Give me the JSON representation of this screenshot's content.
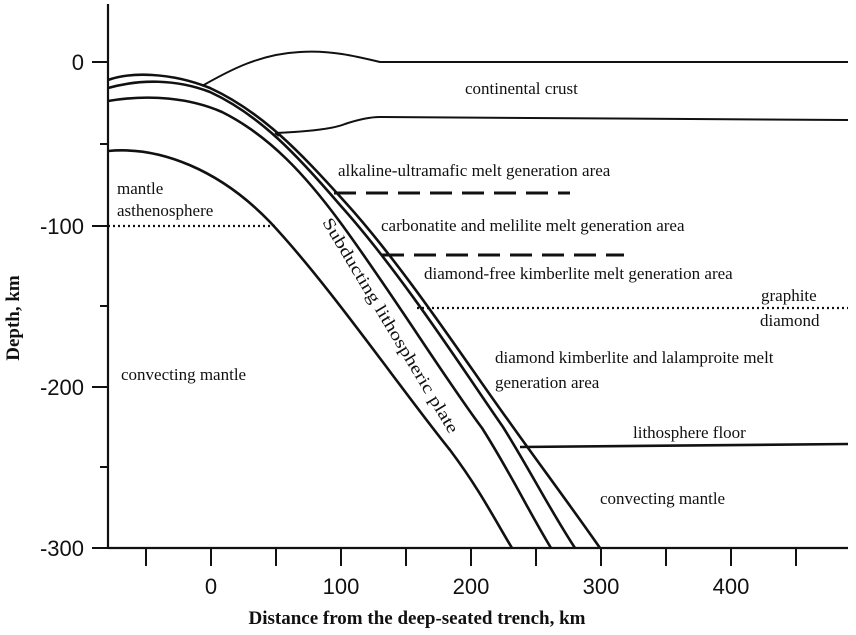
{
  "axes": {
    "x_title": "Distance from the deep-seated trench, km",
    "y_title": "Depth, km",
    "x_ticks": [
      "0",
      "100",
      "200",
      "300",
      "400"
    ],
    "y_ticks": [
      "0",
      "-100",
      "-200",
      "-300"
    ]
  },
  "labels": {
    "continental_crust": "continental crust",
    "alkaline": "alkaline-ultramafic melt generation area",
    "carbonatite": "carbonatite and melilite melt generation area",
    "diamond_free": "diamond-free kimberlite melt generation area",
    "graphite": "graphite",
    "diamond": "diamond",
    "diamond_kimberlite_1": "diamond kimberlite and lalamproite melt",
    "diamond_kimberlite_2": "generation area",
    "lithosphere_floor": "lithosphere floor",
    "convecting_mantle_left": "convecting mantle",
    "convecting_mantle_right": "convecting mantle",
    "mantle_1": "mantle",
    "mantle_2": "asthenosphere",
    "plate": "Subducting lithospheric plate"
  }
}
